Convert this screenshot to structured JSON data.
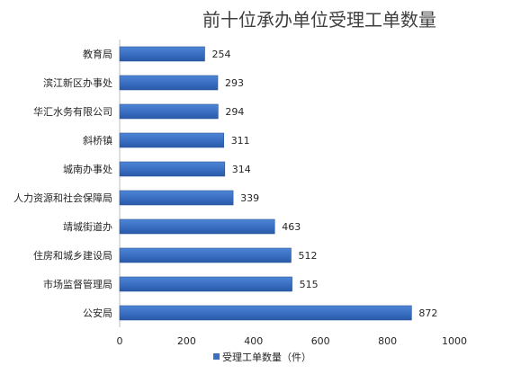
{
  "chart_data": {
    "type": "bar",
    "orientation": "horizontal",
    "title": "前十位承办单位受理工单数量",
    "categories": [
      "教育局",
      "滨江新区办事处",
      "华汇水务有限公司",
      "斜桥镇",
      "城南办事处",
      "人力资源和社会保障局",
      "靖城街道办",
      "住房和城乡建设局",
      "市场监督管理局",
      "公安局"
    ],
    "series": [
      {
        "name": "受理工单数量（件）",
        "values": [
          254,
          293,
          294,
          311,
          314,
          339,
          463,
          512,
          515,
          872
        ]
      }
    ],
    "xlim": [
      0,
      1000
    ],
    "xticks": [
      0,
      200,
      400,
      600,
      800,
      1000
    ],
    "grid": false,
    "legend": "bottom",
    "colors": {
      "bar": "#3A6FC2",
      "bar_edge": "#2C57A0",
      "title": "#404040",
      "text": "#262626"
    }
  }
}
